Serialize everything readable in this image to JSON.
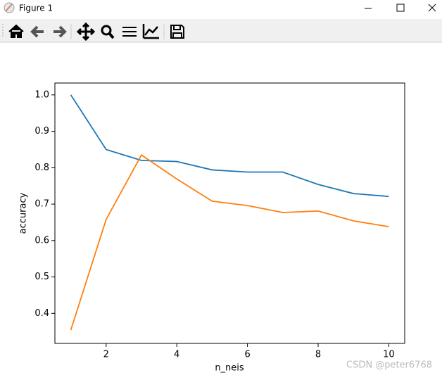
{
  "window": {
    "title": "Figure 1"
  },
  "chart_data": {
    "type": "line",
    "x": [
      1,
      2,
      3,
      4,
      5,
      6,
      7,
      8,
      9,
      10
    ],
    "series": [
      {
        "color": "#1f77b4",
        "values": [
          1.0,
          0.85,
          0.82,
          0.817,
          0.794,
          0.788,
          0.788,
          0.754,
          0.729,
          0.721
        ]
      },
      {
        "color": "#ff7f0e",
        "values": [
          0.354,
          0.658,
          0.835,
          0.769,
          0.708,
          0.696,
          0.677,
          0.681,
          0.654,
          0.638
        ]
      }
    ],
    "x_label": "n_neis",
    "y_label": "accuracy",
    "xlim": [
      0.55,
      10.45
    ],
    "ylim": [
      0.3175,
      1.0325
    ],
    "xticks": [
      2,
      4,
      6,
      8,
      10
    ],
    "yticks": [
      0.4,
      0.5,
      0.6,
      0.7,
      0.8,
      0.9,
      {
        "value": 1,
        "label": "1.0"
      }
    ]
  },
  "watermark": "CSDN @peter6768"
}
